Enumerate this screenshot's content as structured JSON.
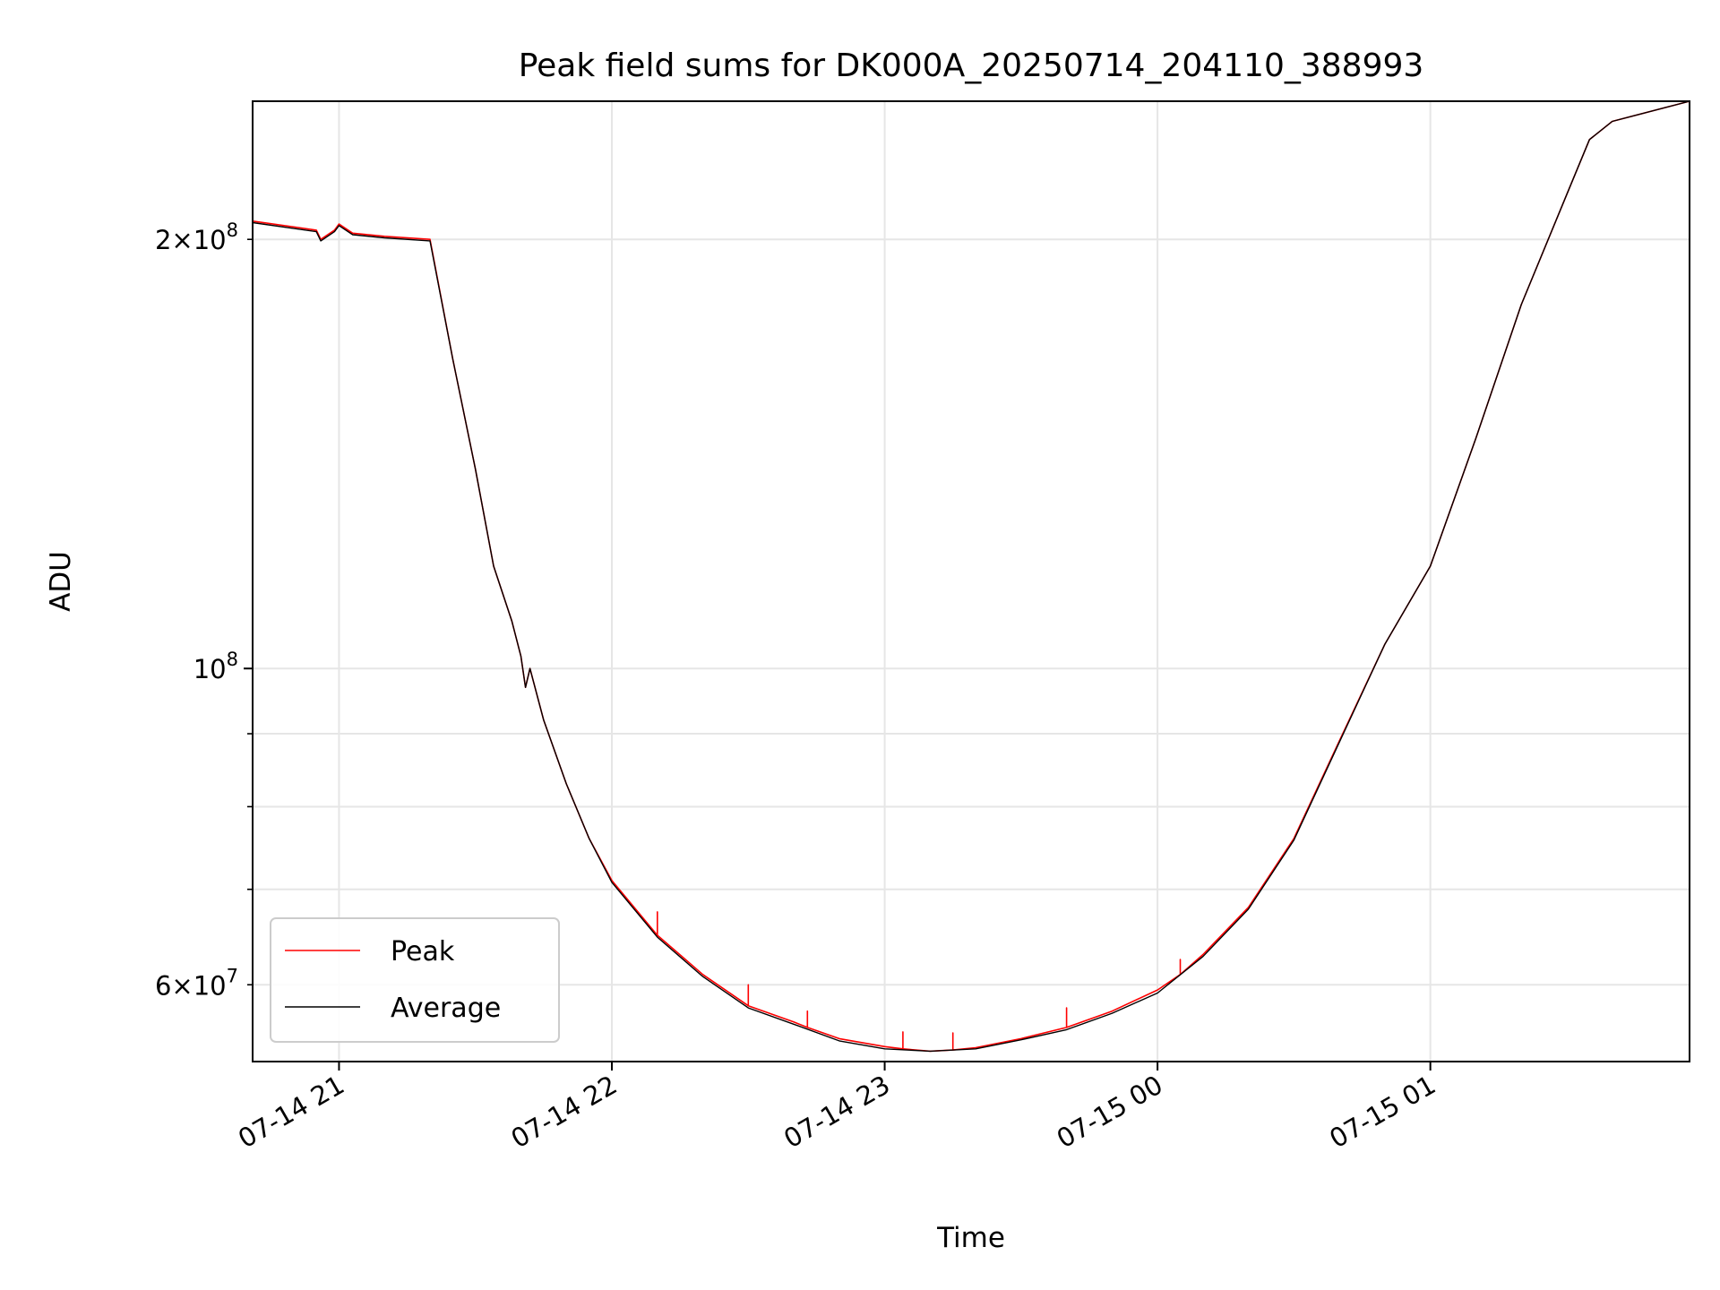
{
  "chart_data": {
    "type": "line",
    "title": "Peak field sums for DK000A_20250714_204110_388993",
    "xlabel": "Time",
    "ylabel": "ADU",
    "yscale": "log",
    "grid": true,
    "legend_placement": "lower-left",
    "xlim": [
      "2025-07-14 20:41",
      "2025-07-15 01:57"
    ],
    "ylim": [
      53000000,
      250000000
    ],
    "x_ticks": [
      {
        "value": "2025-07-14 21:00",
        "label": "07-14 21"
      },
      {
        "value": "2025-07-14 22:00",
        "label": "07-14 22"
      },
      {
        "value": "2025-07-14 23:00",
        "label": "07-14 23"
      },
      {
        "value": "2025-07-15 00:00",
        "label": "07-15 00"
      },
      {
        "value": "2025-07-15 01:00",
        "label": "07-15 01"
      }
    ],
    "y_ticks_major": [
      {
        "value": 100000000,
        "label_base": "10",
        "label_exp": "8"
      }
    ],
    "y_ticks_minor": [
      {
        "value": 60000000,
        "label_coef": "6",
        "label_base": "10",
        "label_exp": "7"
      },
      {
        "value": 70000000
      },
      {
        "value": 80000000
      },
      {
        "value": 90000000
      },
      {
        "value": 200000000,
        "label_coef": "2",
        "label_base": "10",
        "label_exp": "8"
      }
    ],
    "series": [
      {
        "name": "Peak",
        "color": "#ff0000",
        "x": [
          "2025-07-14 20:41",
          "2025-07-14 20:55",
          "2025-07-14 20:56",
          "2025-07-14 20:59",
          "2025-07-14 21:00",
          "2025-07-14 21:03",
          "2025-07-14 21:10",
          "2025-07-14 21:20",
          "2025-07-14 21:25",
          "2025-07-14 21:30",
          "2025-07-14 21:34",
          "2025-07-14 21:38",
          "2025-07-14 21:40",
          "2025-07-14 21:41",
          "2025-07-14 21:42",
          "2025-07-14 21:45",
          "2025-07-14 21:50",
          "2025-07-14 21:55",
          "2025-07-14 22:00",
          "2025-07-14 22:10",
          "2025-07-14 22:10",
          "2025-07-14 22:10",
          "2025-07-14 22:20",
          "2025-07-14 22:30",
          "2025-07-14 22:30",
          "2025-07-14 22:30",
          "2025-07-14 22:40",
          "2025-07-14 22:43",
          "2025-07-14 22:43",
          "2025-07-14 22:43",
          "2025-07-14 22:50",
          "2025-07-14 23:00",
          "2025-07-14 23:04",
          "2025-07-14 23:04",
          "2025-07-14 23:04",
          "2025-07-14 23:10",
          "2025-07-14 23:15",
          "2025-07-14 23:15",
          "2025-07-14 23:15",
          "2025-07-14 23:20",
          "2025-07-14 23:30",
          "2025-07-14 23:40",
          "2025-07-14 23:40",
          "2025-07-14 23:40",
          "2025-07-14 23:50",
          "2025-07-15 00:00",
          "2025-07-15 00:05",
          "2025-07-15 00:05",
          "2025-07-15 00:05",
          "2025-07-15 00:10",
          "2025-07-15 00:20",
          "2025-07-15 00:30",
          "2025-07-15 00:40",
          "2025-07-15 00:50",
          "2025-07-15 01:00",
          "2025-07-15 01:10",
          "2025-07-15 01:20",
          "2025-07-15 01:30",
          "2025-07-15 01:35",
          "2025-07-15 01:40",
          "2025-07-15 01:57"
        ],
        "y": [
          206000000,
          203000000,
          200000000,
          203000000,
          205000000,
          202000000,
          201000000,
          200000000,
          165000000,
          138000000,
          118000000,
          108000000,
          102000000,
          97000000,
          100000000,
          92000000,
          83000000,
          76000000,
          71000000,
          65000000,
          67500000,
          65000000,
          61000000,
          58000000,
          60000000,
          58000000,
          56500000,
          56000000,
          57500000,
          56000000,
          55000000,
          54300000,
          54100000,
          55600000,
          54100000,
          53900000,
          54000000,
          55500000,
          54000000,
          54200000,
          55000000,
          56000000,
          57800000,
          56000000,
          57500000,
          59500000,
          61000000,
          62500000,
          61000000,
          63000000,
          68000000,
          76000000,
          89000000,
          104000000,
          118000000,
          145000000,
          180000000,
          215000000,
          235000000,
          242000000,
          250000000
        ]
      },
      {
        "name": "Average",
        "color": "#000000",
        "x": [
          "2025-07-14 20:41",
          "2025-07-14 20:55",
          "2025-07-14 20:56",
          "2025-07-14 20:59",
          "2025-07-14 21:00",
          "2025-07-14 21:03",
          "2025-07-14 21:10",
          "2025-07-14 21:20",
          "2025-07-14 21:25",
          "2025-07-14 21:30",
          "2025-07-14 21:34",
          "2025-07-14 21:38",
          "2025-07-14 21:40",
          "2025-07-14 21:41",
          "2025-07-14 21:42",
          "2025-07-14 21:45",
          "2025-07-14 21:50",
          "2025-07-14 21:55",
          "2025-07-14 22:00",
          "2025-07-14 22:10",
          "2025-07-14 22:20",
          "2025-07-14 22:30",
          "2025-07-14 22:40",
          "2025-07-14 22:50",
          "2025-07-14 23:00",
          "2025-07-14 23:10",
          "2025-07-14 23:20",
          "2025-07-14 23:30",
          "2025-07-14 23:40",
          "2025-07-14 23:50",
          "2025-07-15 00:00",
          "2025-07-15 00:10",
          "2025-07-15 00:20",
          "2025-07-15 00:30",
          "2025-07-15 00:40",
          "2025-07-15 00:50",
          "2025-07-15 01:00",
          "2025-07-15 01:10",
          "2025-07-15 01:20",
          "2025-07-15 01:30",
          "2025-07-15 01:35",
          "2025-07-15 01:40",
          "2025-07-15 01:57"
        ],
        "y": [
          205500000,
          202500000,
          199500000,
          202500000,
          204500000,
          201500000,
          200500000,
          199500000,
          165000000,
          138000000,
          118000000,
          108000000,
          102000000,
          97000000,
          100000000,
          92000000,
          83000000,
          76000000,
          70800000,
          64800000,
          60800000,
          57800000,
          56300000,
          54800000,
          54100000,
          53900000,
          54100000,
          54900000,
          55800000,
          57300000,
          59200000,
          62800000,
          67800000,
          75800000,
          88800000,
          104000000,
          118000000,
          145000000,
          180000000,
          215000000,
          235000000,
          242000000,
          250000000
        ]
      }
    ]
  }
}
